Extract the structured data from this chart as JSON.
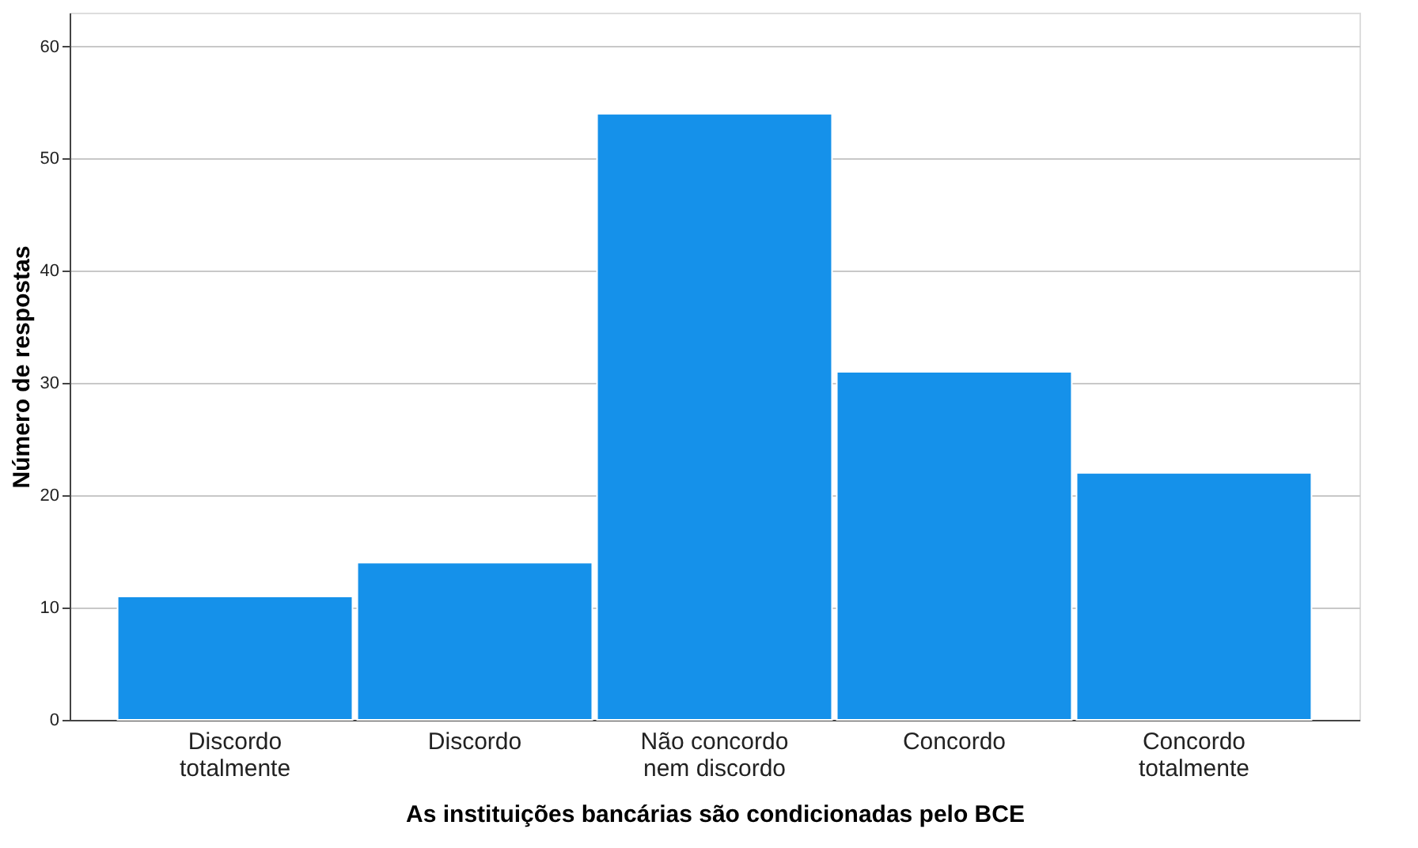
{
  "chart_data": {
    "type": "bar",
    "xlabel": "As instituições bancárias são condicionadas pelo BCE",
    "ylabel": "Número de respostas",
    "categories": [
      "Discordo\ntotalmente",
      "Discordo",
      "Não concordo\nnem discordo",
      "Concordo",
      "Concordo\ntotalmente"
    ],
    "values": [
      11,
      14,
      54,
      31,
      22
    ],
    "color": "#1591ea",
    "ylim": [
      0,
      63
    ],
    "yticks": [
      0,
      10,
      20,
      30,
      40,
      50,
      60
    ],
    "grid": "y"
  }
}
